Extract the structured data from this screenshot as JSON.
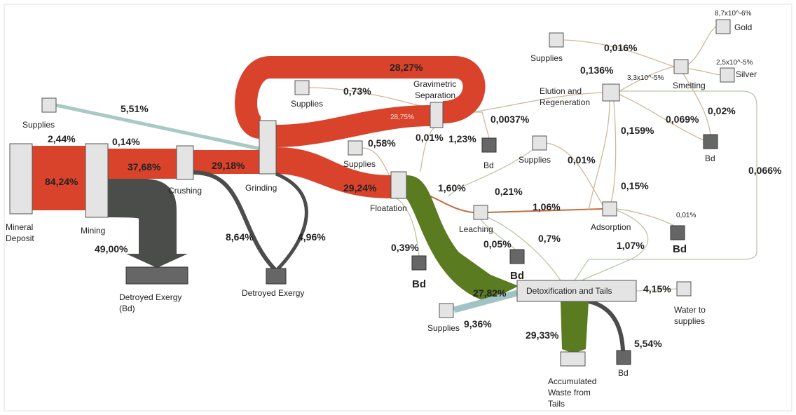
{
  "nodes": [
    {
      "label": [
        "Mineral",
        "Deposit"
      ]
    },
    {
      "label": [
        "Mining"
      ]
    },
    {
      "label": [
        "Crushing"
      ]
    },
    {
      "label": [
        "Grinding"
      ]
    },
    {
      "label": [
        "Gravimetric",
        "Separation"
      ]
    },
    {
      "label": [
        "Floatation"
      ]
    },
    {
      "label": [
        "Leaching"
      ]
    },
    {
      "label": [
        "Adsorption"
      ]
    },
    {
      "label": [
        "Elution and",
        "Regeneration"
      ]
    },
    {
      "label": [
        "Smelting"
      ]
    },
    {
      "label": [
        "Gold"
      ]
    },
    {
      "label": [
        "Silver"
      ]
    },
    {
      "label": [
        "Detroyed Exergy",
        "(Bd)"
      ]
    },
    {
      "label": [
        "Detroyed Exergy"
      ]
    },
    {
      "label": [
        "Detoxification and Tails"
      ]
    },
    {
      "label": [
        "Water to",
        "supplies"
      ]
    },
    {
      "label": [
        "Accumulated",
        "Waste from",
        "Tails"
      ]
    }
  ],
  "supplies": [
    "Supplies",
    "Supplies",
    "Supplies",
    "Supplies",
    "Supplies",
    "Supplies"
  ],
  "bd": [
    "Bd",
    "Bd",
    "Bd",
    "Bd",
    "Bd",
    "Bd"
  ],
  "flows": [
    "5,51%",
    "2,44%",
    "0,14%",
    "84,24%",
    "37,68%",
    "29,18%",
    "49,00%",
    "8,64%",
    "4,96%",
    "28,27%",
    "0,73%",
    "28,75%",
    "0,0037%",
    "0,01%",
    "1,23%",
    "0,58%",
    "29,24%",
    "1,60%",
    "0,21%",
    "1,06%",
    "0,01%",
    "0,016%",
    "0,136%",
    "3,3x10^-5%",
    "8,7x10^-6%",
    "2,5x10^-5%",
    "0,069%",
    "0,02%",
    "0,159%",
    "0,15%",
    "0,066%",
    "0,01%",
    "0,39%",
    "0,05%",
    "0,7%",
    "1,07%",
    "27,82%",
    "4,15%",
    "9,36%",
    "29,33%",
    "5,54%"
  ]
}
